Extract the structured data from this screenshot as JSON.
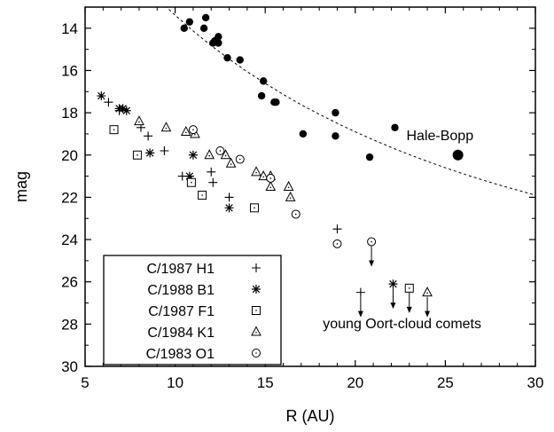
{
  "chart_data": {
    "type": "scatter",
    "xlabel": "R (AU)",
    "ylabel": "mag",
    "xlim": [
      5,
      30
    ],
    "ylim": [
      30,
      13
    ],
    "y_inverted": true,
    "x_ticks": [
      5,
      10,
      15,
      20,
      25,
      30
    ],
    "y_ticks": [
      14,
      16,
      18,
      20,
      22,
      24,
      26,
      28,
      30
    ],
    "grid": false,
    "legend_position": "bottom-left",
    "series": [
      {
        "name": "Hale-Bopp",
        "marker": "filled-circle",
        "points": [
          [
            10.5,
            14.0
          ],
          [
            10.8,
            13.7
          ],
          [
            11.6,
            14.0
          ],
          [
            11.7,
            13.5
          ],
          [
            12.1,
            14.7
          ],
          [
            12.2,
            14.6
          ],
          [
            12.4,
            14.4
          ],
          [
            12.4,
            14.7
          ],
          [
            12.9,
            15.4
          ],
          [
            13.6,
            15.5
          ],
          [
            14.9,
            16.5
          ],
          [
            14.8,
            17.2
          ],
          [
            15.5,
            17.5
          ],
          [
            15.6,
            17.5
          ],
          [
            17.1,
            19.0
          ],
          [
            18.9,
            18.0
          ],
          [
            18.9,
            19.1
          ],
          [
            20.8,
            20.1
          ],
          [
            22.2,
            18.7
          ],
          [
            25.7,
            20.0
          ]
        ]
      },
      {
        "name": "C/1987 H1",
        "marker": "plus",
        "points": [
          [
            6.3,
            17.5
          ],
          [
            6.9,
            17.9
          ],
          [
            8.1,
            18.7
          ],
          [
            8.5,
            19.1
          ],
          [
            9.4,
            19.8
          ],
          [
            10.4,
            21.0
          ],
          [
            10.9,
            21.2
          ],
          [
            12.0,
            20.8
          ],
          [
            12.1,
            21.3
          ],
          [
            13.0,
            22.0
          ],
          [
            19.0,
            23.5
          ],
          [
            20.3,
            26.5
          ]
        ],
        "upper_limits": [
          [
            20.3,
            26.5
          ]
        ]
      },
      {
        "name": "C/1988 B1",
        "marker": "asterisk",
        "points": [
          [
            5.9,
            17.2
          ],
          [
            6.9,
            17.8
          ],
          [
            7.1,
            17.8
          ],
          [
            7.3,
            17.9
          ],
          [
            8.6,
            19.9
          ],
          [
            11.0,
            20.0
          ],
          [
            10.8,
            21.0
          ],
          [
            13.0,
            22.5
          ],
          [
            22.1,
            26.1
          ]
        ],
        "upper_limits": [
          [
            22.1,
            26.1
          ]
        ]
      },
      {
        "name": "C/1987 F1",
        "marker": "open-square",
        "points": [
          [
            6.6,
            18.8
          ],
          [
            7.9,
            20.0
          ],
          [
            10.9,
            21.3
          ],
          [
            11.5,
            21.9
          ],
          [
            14.4,
            22.5
          ],
          [
            23.0,
            26.3
          ]
        ],
        "upper_limits": [
          [
            23.0,
            26.3
          ]
        ]
      },
      {
        "name": "C/1984 K1",
        "marker": "open-triangle",
        "points": [
          [
            8.0,
            18.4
          ],
          [
            9.5,
            18.7
          ],
          [
            10.6,
            18.9
          ],
          [
            11.1,
            19.0
          ],
          [
            11.9,
            20.0
          ],
          [
            12.8,
            20.0
          ],
          [
            13.1,
            20.4
          ],
          [
            14.5,
            20.8
          ],
          [
            14.9,
            21.0
          ],
          [
            15.3,
            21.0
          ],
          [
            15.3,
            21.5
          ],
          [
            16.3,
            21.5
          ],
          [
            16.4,
            22.0
          ],
          [
            24.0,
            26.5
          ]
        ],
        "upper_limits": [
          [
            24.0,
            26.5
          ]
        ]
      },
      {
        "name": "C/1983 O1",
        "marker": "open-circle",
        "points": [
          [
            11.0,
            18.8
          ],
          [
            12.5,
            19.8
          ],
          [
            13.6,
            20.2
          ],
          [
            15.3,
            21.1
          ],
          [
            16.7,
            22.8
          ],
          [
            19.0,
            24.2
          ],
          [
            20.9,
            24.1
          ]
        ],
        "upper_limits": [
          [
            20.9,
            24.1
          ]
        ]
      }
    ],
    "fit_curve": {
      "style": "dashed",
      "points": [
        [
          9.0,
          12.6
        ],
        [
          10,
          13.38
        ],
        [
          11,
          14.13
        ],
        [
          12,
          14.82
        ],
        [
          13,
          15.46
        ],
        [
          14,
          16.06
        ],
        [
          15,
          16.61
        ],
        [
          16,
          17.13
        ],
        [
          17,
          17.62
        ],
        [
          18,
          18.07
        ],
        [
          19,
          18.5
        ],
        [
          20,
          18.9
        ],
        [
          21,
          19.28
        ],
        [
          22,
          19.64
        ],
        [
          23,
          19.98
        ],
        [
          24,
          20.3
        ],
        [
          25,
          20.6
        ],
        [
          26,
          20.89
        ],
        [
          27,
          21.16
        ],
        [
          28,
          21.42
        ],
        [
          29,
          21.66
        ],
        [
          30,
          21.9
        ]
      ]
    },
    "annotations": [
      {
        "text": "Hale-Bopp",
        "x": 24.7,
        "y": 19.3
      },
      {
        "text": "young Oort-cloud comets",
        "x": 22.6,
        "y": 28.2
      }
    ]
  }
}
